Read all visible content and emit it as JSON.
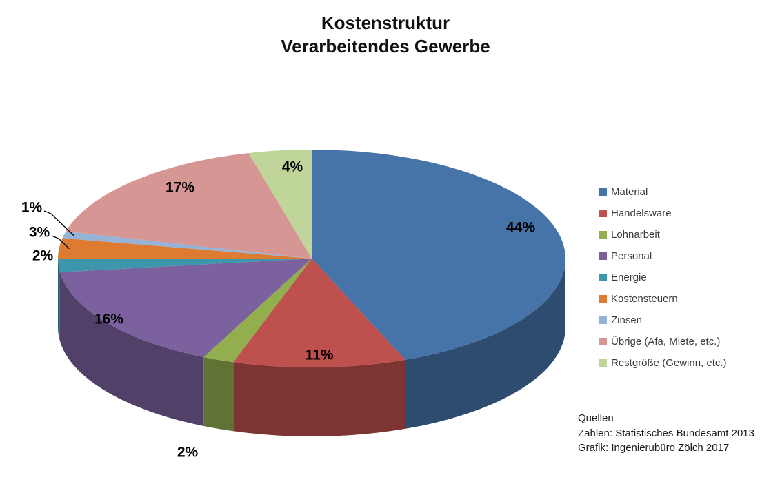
{
  "title": {
    "line1": "Kostenstruktur",
    "line2": "Verarbeitendes Gewerbe"
  },
  "sources": {
    "line1": "Quellen",
    "line2": "Zahlen: Statistisches Bundesamt 2013",
    "line3": "Grafik:  Ingenierubüro Zölch 2017"
  },
  "chart_data": {
    "type": "pie",
    "is_3d": true,
    "title": "Kostenstruktur Verarbeitendes Gewerbe",
    "start_angle_deg": 0,
    "direction": "clockwise",
    "legend_position": "right",
    "unit": "%",
    "labels": [
      "Material",
      "Handelsware",
      "Lohnarbeit",
      "Personal",
      "Energie",
      "Kostensteuern",
      "Zinsen",
      "Übrige (Afa, Miete, etc.)",
      "Restgröße (Gewinn, etc.)"
    ],
    "values": [
      44,
      11,
      2,
      16,
      2,
      3,
      1,
      17,
      4
    ],
    "data_labels": [
      "44%",
      "11%",
      "2%",
      "16%",
      "2%",
      "3%",
      "1%",
      "17%",
      "4%"
    ],
    "colors": [
      "#4673A8",
      "#BE504D",
      "#93AE4F",
      "#7B629F",
      "#3E96AC",
      "#DE7B33",
      "#95B3D7",
      "#D59694",
      "#C0D59A"
    ]
  }
}
